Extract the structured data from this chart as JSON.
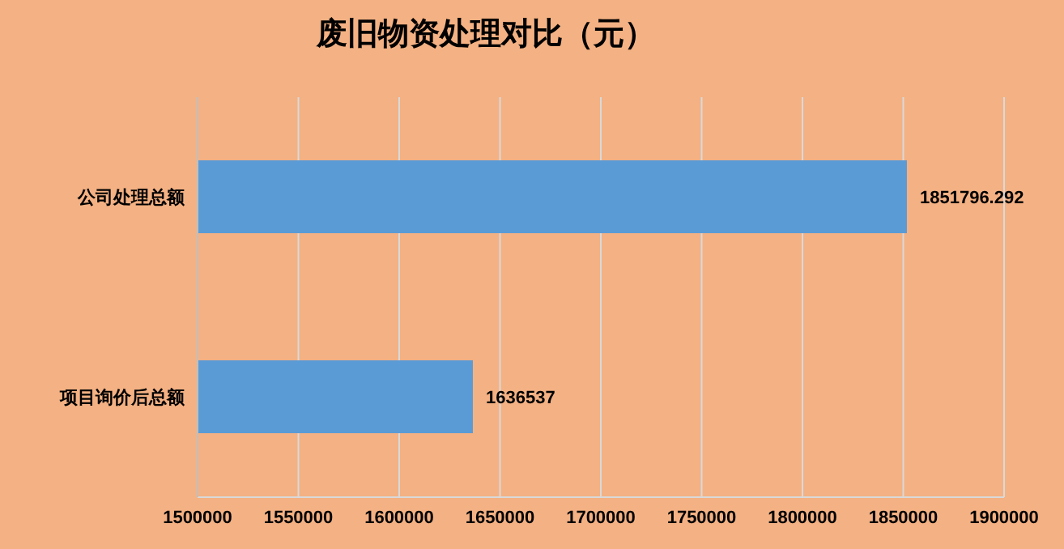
{
  "chart_data": {
    "type": "bar",
    "orientation": "horizontal",
    "title": "废旧物资处理对比（元）",
    "categories": [
      "公司处理总额",
      "项目询价后总额"
    ],
    "values": [
      1851796.292,
      1636537
    ],
    "color": "#5b9bd5",
    "xlim": [
      1500000,
      1900000
    ],
    "xticks": [
      1500000,
      1550000,
      1600000,
      1650000,
      1700000,
      1750000,
      1800000,
      1850000,
      1900000
    ],
    "grid": "x",
    "data_labels": true
  }
}
